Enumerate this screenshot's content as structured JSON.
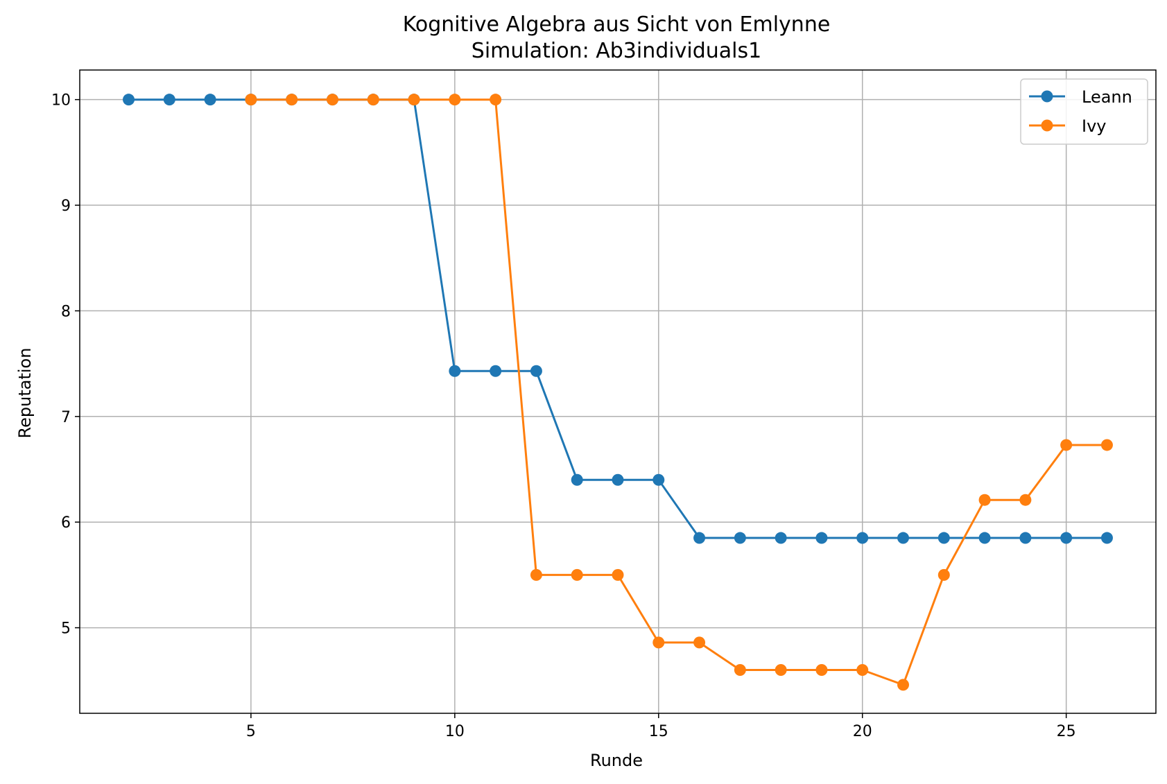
{
  "chart_data": {
    "type": "line",
    "title": "Kognitive Algebra aus Sicht von Emlynne",
    "subtitle": "Simulation: Ab3individuals1",
    "xlabel": "Runde",
    "ylabel": "Reputation",
    "xlim": [
      0.8,
      27.2
    ],
    "ylim": [
      4.19,
      10.28
    ],
    "xticks": [
      5,
      10,
      15,
      20,
      25
    ],
    "yticks": [
      5,
      6,
      7,
      8,
      9,
      10
    ],
    "grid": true,
    "legend_position": "top-right",
    "series": [
      {
        "name": "Leann",
        "color": "#1f77b4",
        "x": [
          2,
          3,
          4,
          5,
          6,
          7,
          8,
          9,
          10,
          11,
          12,
          13,
          14,
          15,
          16,
          17,
          18,
          19,
          20,
          21,
          22,
          23,
          24,
          25,
          26
        ],
        "y": [
          10,
          10,
          10,
          10,
          10,
          10,
          10,
          10,
          7.43,
          7.43,
          7.43,
          6.4,
          6.4,
          6.4,
          5.85,
          5.85,
          5.85,
          5.85,
          5.85,
          5.85,
          5.85,
          5.85,
          5.85,
          5.85,
          5.85
        ]
      },
      {
        "name": "Ivy",
        "color": "#ff7f0e",
        "x": [
          5,
          6,
          7,
          8,
          9,
          10,
          11,
          12,
          13,
          14,
          15,
          16,
          17,
          18,
          19,
          20,
          21,
          22,
          23,
          24,
          25,
          26
        ],
        "y": [
          10,
          10,
          10,
          10,
          10,
          10,
          10,
          5.5,
          5.5,
          5.5,
          4.86,
          4.86,
          4.6,
          4.6,
          4.6,
          4.6,
          4.46,
          5.5,
          6.21,
          6.21,
          6.73,
          6.73
        ]
      }
    ]
  }
}
